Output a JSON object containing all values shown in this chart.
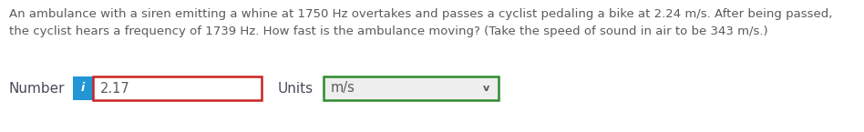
{
  "background_color": "#ffffff",
  "text_line1": "An ambulance with a siren emitting a whine at 1750 Hz overtakes and passes a cyclist pedaling a bike at 2.24 m/s. After being passed,",
  "text_line2": "the cyclist hears a frequency of 1739 Hz. How fast is the ambulance moving? (Take the speed of sound in air to be 343 m/s.)",
  "text_color": "#5a5a5a",
  "text_fontsize": 9.5,
  "label_number": "Number",
  "label_units": "Units",
  "label_fontsize": 11,
  "label_color": "#4a4a5a",
  "info_box_color": "#2196d3",
  "info_text": "i",
  "info_text_color": "#ffffff",
  "number_value": "2.17",
  "number_box_border_color": "#cc2222",
  "number_box_fill": "#ffffff",
  "units_value": "m/s",
  "units_box_border_color": "#2e8b2e",
  "units_box_fill": "#eeeeee",
  "dropdown_arrow": "v",
  "number_fontsize": 10.5,
  "units_fontsize": 10.5,
  "fig_width": 9.48,
  "fig_height": 1.45,
  "dpi": 100
}
